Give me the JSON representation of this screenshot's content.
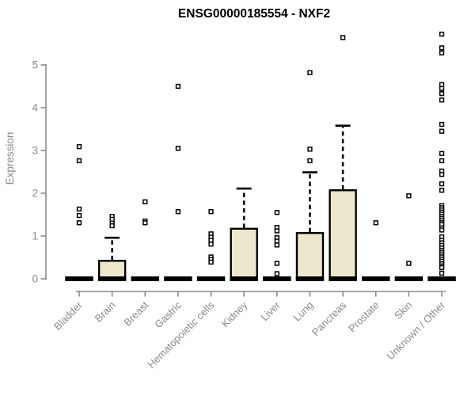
{
  "chart_data": {
    "type": "boxplot",
    "title": "ENSG00000185554 - NXF2",
    "xlabel": "",
    "ylabel": "Expression",
    "yticks": [
      0,
      1,
      2,
      3,
      4,
      5
    ],
    "ylim": [
      0,
      5.9
    ],
    "grid": false,
    "legend": false,
    "categories": [
      "Bladder",
      "Brain",
      "Breast",
      "Gastric",
      "Hematopoietic cells",
      "Kidney",
      "Liver",
      "Lung",
      "Pancreas",
      "Prostate",
      "Skin",
      "Unknown / Other"
    ],
    "boxes": [
      {
        "category": "Bladder",
        "q1": 0,
        "median": 0,
        "q3": 0,
        "whisker_low": 0,
        "whisker_high": 0,
        "outliers": [
          3.09,
          2.76,
          1.63,
          1.48,
          1.31
        ]
      },
      {
        "category": "Brain",
        "q1": 0,
        "median": 0,
        "q3": 0.42,
        "whisker_low": 0,
        "whisker_high": 0.96,
        "outliers": [
          1.46,
          1.39,
          1.3,
          1.24
        ]
      },
      {
        "category": "Breast",
        "q1": 0,
        "median": 0,
        "q3": 0,
        "whisker_low": 0,
        "whisker_high": 0,
        "outliers": [
          1.8,
          1.35,
          1.31
        ]
      },
      {
        "category": "Gastric",
        "q1": 0,
        "median": 0,
        "q3": 0,
        "whisker_low": 0,
        "whisker_high": 0,
        "outliers": [
          4.5,
          3.05,
          1.57
        ]
      },
      {
        "category": "Hematopoietic cells",
        "q1": 0,
        "median": 0,
        "q3": 0,
        "whisker_low": 0,
        "whisker_high": 0,
        "outliers": [
          1.57,
          1.05,
          0.97,
          0.9,
          0.81,
          0.51,
          0.45,
          0.39
        ]
      },
      {
        "category": "Kidney",
        "q1": 0,
        "median": 0,
        "q3": 1.17,
        "whisker_low": 0,
        "whisker_high": 2.11,
        "outliers": []
      },
      {
        "category": "Liver",
        "q1": 0,
        "median": 0,
        "q3": 0,
        "whisker_low": 0,
        "whisker_high": 0,
        "outliers": [
          1.55,
          1.2,
          1.12,
          0.96,
          0.88,
          0.79,
          0.36,
          0.12
        ]
      },
      {
        "category": "Lung",
        "q1": 0,
        "median": 0,
        "q3": 1.07,
        "whisker_low": 0,
        "whisker_high": 2.49,
        "outliers": [
          4.82,
          3.03,
          2.76
        ]
      },
      {
        "category": "Pancreas",
        "q1": 0,
        "median": 0,
        "q3": 2.07,
        "whisker_low": 0,
        "whisker_high": 3.58,
        "outliers": [
          5.64
        ]
      },
      {
        "category": "Prostate",
        "q1": 0,
        "median": 0,
        "q3": 0,
        "whisker_low": 0,
        "whisker_high": 0,
        "outliers": [
          1.31
        ]
      },
      {
        "category": "Skin",
        "q1": 0,
        "median": 0,
        "q3": 0,
        "whisker_low": 0,
        "whisker_high": 0,
        "outliers": [
          1.94,
          0.36
        ]
      },
      {
        "category": "Unknown / Other",
        "q1": 0,
        "median": 0,
        "q3": 0,
        "whisker_low": 0,
        "whisker_high": 0,
        "outliers": [
          5.72,
          5.4,
          5.28,
          4.54,
          4.45,
          4.33,
          4.18,
          3.61,
          3.45,
          2.93,
          2.76,
          2.52,
          2.44,
          2.22,
          2.07,
          1.71,
          1.66,
          1.61,
          1.56,
          1.51,
          1.46,
          1.41,
          1.36,
          1.31,
          1.27,
          1.19,
          1.14,
          0.98,
          0.9,
          0.84,
          0.78,
          0.72,
          0.66,
          0.61,
          0.56,
          0.51,
          0.46,
          0.41,
          0.35,
          0.3,
          0.26,
          0.13
        ]
      }
    ],
    "style": {
      "box_fill": "#EDE7CE",
      "box_border": "#000000",
      "median_color": "#000000",
      "whisker_style": "dashed",
      "outlier_marker": "open-square",
      "axis_color": "#8a8a8a",
      "label_color": "#8a8a8a",
      "title_color": "#000000",
      "background": "#ffffff"
    }
  }
}
